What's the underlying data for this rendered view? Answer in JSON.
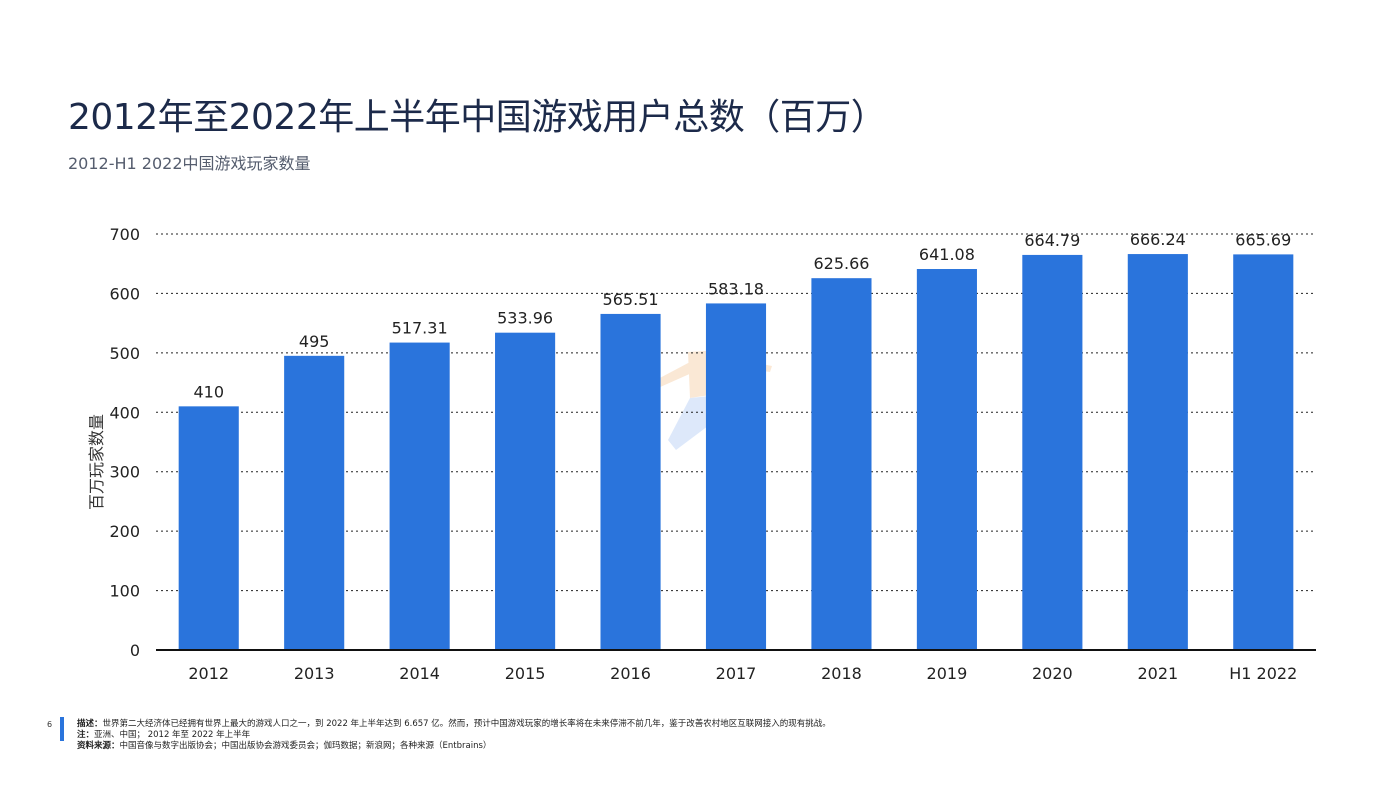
{
  "page": {
    "title": "2012年至2022年上半年中国游戏用户总数（百万）",
    "subtitle": "2012-H1 2022中国游戏玩家数量",
    "page_number": "6"
  },
  "footer": {
    "desc_label": "描述：",
    "desc_text": "世界第二大经济体已经拥有世界上最大的游戏人口之一，到 2022 年上半年达到 6.657 亿。然而，预计中国游戏玩家的增长率将在未来停滞不前几年，鉴于改善农村地区互联网接入的现有挑战。",
    "note_label": "注：",
    "note_text": "亚洲、中国； 2012 年至 2022 年上半年",
    "source_label": "资料来源：",
    "source_text": "中国音像与数字出版协会；中国出版协会游戏委员会；伽玛数据；新浪网；各种来源（Entbrains）"
  },
  "chart_data": {
    "type": "bar",
    "categories": [
      "2012",
      "2013",
      "2014",
      "2015",
      "2016",
      "2017",
      "2018",
      "2019",
      "2020",
      "2021",
      "H1 2022"
    ],
    "values": [
      410,
      495,
      517.31,
      533.96,
      565.51,
      583.18,
      625.66,
      641.08,
      664.79,
      666.24,
      665.69
    ],
    "value_labels": [
      "410",
      "495",
      "517.31",
      "533.96",
      "565.51",
      "583.18",
      "625.66",
      "641.08",
      "664.79",
      "666.24",
      "665.69"
    ],
    "ylabel": "百万玩家数量",
    "ylim": [
      0,
      700
    ],
    "yticks": [
      0,
      100,
      200,
      300,
      400,
      500,
      600,
      700
    ],
    "grid": true,
    "bar_color": "#2a74dc"
  }
}
